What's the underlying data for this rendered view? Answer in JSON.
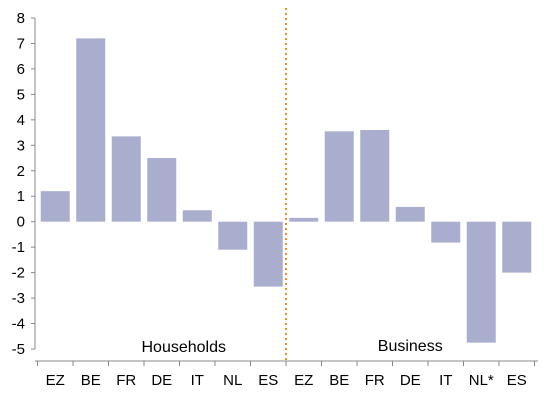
{
  "chart_data": {
    "type": "bar",
    "title": "",
    "xlabel": "",
    "ylabel": "",
    "ylim": [
      -5,
      8
    ],
    "yticks": [
      "8",
      "7",
      "6",
      "5",
      "4",
      "3",
      "2",
      "1",
      "0",
      "-1",
      "-2",
      "-3",
      "-4",
      "-5"
    ],
    "grid": false,
    "bar_color": "#a9aece",
    "divider_color": "#f28a1c",
    "groups": [
      {
        "name": "Households",
        "categories": [
          "EZ",
          "BE",
          "FR",
          "DE",
          "IT",
          "NL",
          "ES"
        ],
        "values": [
          1.2,
          7.2,
          3.35,
          2.5,
          0.45,
          -1.1,
          -2.55
        ]
      },
      {
        "name": "Business",
        "categories": [
          "EZ",
          "BE",
          "FR",
          "DE",
          "IT",
          "NL*",
          "ES"
        ],
        "values": [
          0.15,
          3.55,
          3.6,
          0.58,
          -0.82,
          -4.75,
          -2.0
        ]
      }
    ]
  }
}
